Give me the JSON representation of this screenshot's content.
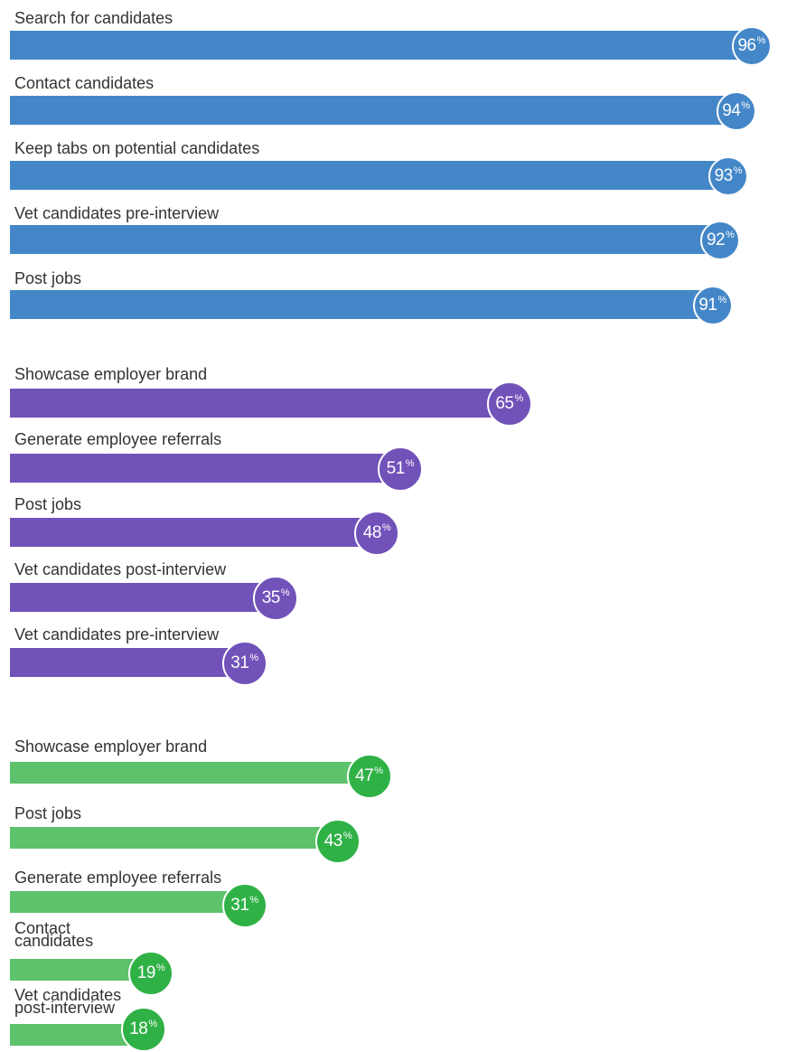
{
  "chart_data": [
    {
      "type": "bar",
      "orientation": "horizontal",
      "color": "#4487c8",
      "bubble_color": "#4487c8",
      "categories": [
        "Search for candidates",
        "Contact candidates",
        "Keep tabs on potential candidates",
        "Vet candidates pre-interview",
        "Post jobs"
      ],
      "values": [
        96,
        94,
        93,
        92,
        91
      ],
      "value_suffix": "%"
    },
    {
      "type": "bar",
      "orientation": "horizontal",
      "color": "#7152b9",
      "bubble_color": "#7152b9",
      "categories": [
        "Showcase employer brand",
        "Generate employee referrals",
        "Post jobs",
        "Vet candidates post-interview",
        "Vet candidates pre-interview"
      ],
      "values": [
        65,
        51,
        48,
        35,
        31
      ],
      "value_suffix": "%"
    },
    {
      "type": "bar",
      "orientation": "horizontal",
      "color": "#5dc26b",
      "bubble_color": "#2fb146",
      "categories": [
        "Showcase employer brand",
        "Post jobs",
        "Generate employee referrals",
        "Contact\ncandidates",
        "Vet candidates\npost-interview"
      ],
      "values": [
        47,
        43,
        31,
        19,
        18
      ],
      "value_suffix": "%"
    }
  ]
}
